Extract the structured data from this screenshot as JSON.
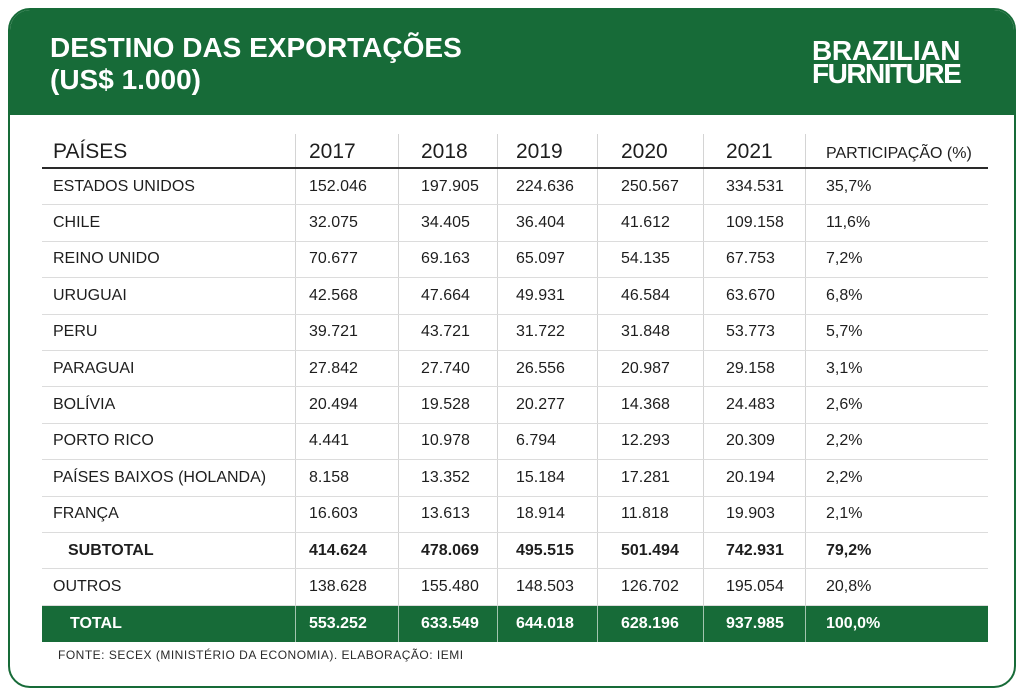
{
  "colors": {
    "brand_green": "#176b38"
  },
  "logo": {
    "line1": "BRAZILIAN",
    "line2": "FURNITURE"
  },
  "chart_data": {
    "type": "table",
    "title": "DESTINO DAS EXPORTAÇÕES",
    "subtitle": "(US$ 1.000)",
    "columns": [
      "PAÍSES",
      "2017",
      "2018",
      "2019",
      "2020",
      "2021",
      "PARTICIPAÇÃO (%)"
    ],
    "rows": [
      [
        "ESTADOS UNIDOS",
        "152.046",
        "197.905",
        "224.636",
        "250.567",
        "334.531",
        "35,7%"
      ],
      [
        "CHILE",
        "32.075",
        "34.405",
        "36.404",
        "41.612",
        "109.158",
        "11,6%"
      ],
      [
        "REINO UNIDO",
        "70.677",
        "69.163",
        "65.097",
        "54.135",
        "67.753",
        "7,2%"
      ],
      [
        "URUGUAI",
        "42.568",
        "47.664",
        "49.931",
        "46.584",
        "63.670",
        "6,8%"
      ],
      [
        "PERU",
        "39.721",
        "43.721",
        "31.722",
        "31.848",
        "53.773",
        "5,7%"
      ],
      [
        "PARAGUAI",
        "27.842",
        "27.740",
        "26.556",
        "20.987",
        "29.158",
        "3,1%"
      ],
      [
        "BOLÍVIA",
        "20.494",
        "19.528",
        "20.277",
        "14.368",
        "24.483",
        "2,6%"
      ],
      [
        "PORTO RICO",
        "4.441",
        "10.978",
        "6.794",
        "12.293",
        "20.309",
        "2,2%"
      ],
      [
        "PAÍSES BAIXOS (HOLANDA)",
        "8.158",
        "13.352",
        "15.184",
        "17.281",
        "20.194",
        "2,2%"
      ],
      [
        "FRANÇA",
        "16.603",
        "13.613",
        "18.914",
        "11.818",
        "19.903",
        "2,1%"
      ]
    ],
    "subtotal_row": [
      "SUBTOTAL",
      "414.624",
      "478.069",
      "495.515",
      "501.494",
      "742.931",
      "79,2%"
    ],
    "others_row": [
      "OUTROS",
      "138.628",
      "155.480",
      "148.503",
      "126.702",
      "195.054",
      "20,8%"
    ],
    "total_row": [
      "TOTAL",
      "553.252",
      "633.549",
      "644.018",
      "628.196",
      "937.985",
      "100,0%"
    ]
  },
  "footer": {
    "source": "FONTE: SECEX (MINISTÉRIO DA ECONOMIA). ELABORAÇÃO: IEMI"
  }
}
